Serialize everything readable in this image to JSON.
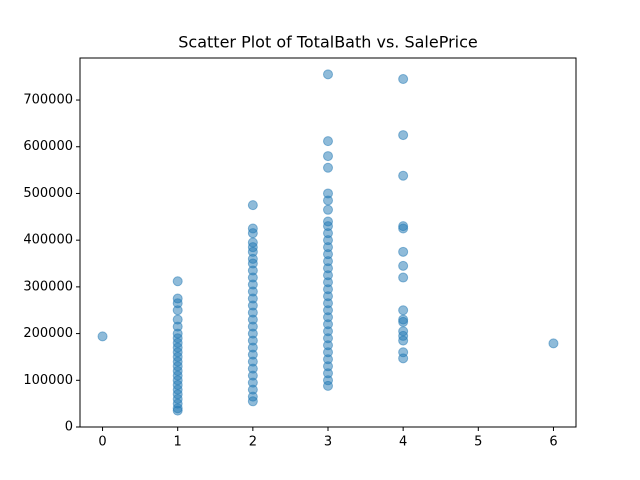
{
  "chart_data": {
    "type": "scatter",
    "title": "Scatter Plot of TotalBath vs. SalePrice",
    "color": "#1f77b4",
    "x": [
      0,
      1,
      1,
      1,
      1,
      1,
      1,
      1,
      1,
      1,
      1,
      1,
      1,
      1,
      1,
      1,
      1,
      1,
      1,
      1,
      1,
      1,
      1,
      1,
      1,
      2,
      2,
      2,
      2,
      2,
      2,
      2,
      2,
      2,
      2,
      2,
      2,
      2,
      2,
      2,
      2,
      2,
      2,
      2,
      2,
      2,
      2,
      2,
      2,
      2,
      2,
      2,
      2,
      3,
      3,
      3,
      3,
      3,
      3,
      3,
      3,
      3,
      3,
      3,
      3,
      3,
      3,
      3,
      3,
      3,
      3,
      3,
      3,
      3,
      3,
      3,
      3,
      3,
      3,
      3,
      3,
      3,
      3,
      3,
      3,
      4,
      4,
      4,
      4,
      4,
      4,
      4,
      4,
      4,
      4,
      4,
      4,
      4,
      4,
      4,
      4,
      6
    ],
    "y": [
      194000,
      35000,
      40000,
      50000,
      60000,
      70000,
      80000,
      90000,
      100000,
      110000,
      120000,
      130000,
      140000,
      150000,
      160000,
      170000,
      180000,
      190000,
      200000,
      215000,
      230000,
      250000,
      265000,
      275000,
      312000,
      55000,
      65000,
      80000,
      95000,
      110000,
      125000,
      140000,
      155000,
      170000,
      185000,
      200000,
      215000,
      230000,
      245000,
      260000,
      275000,
      290000,
      305000,
      320000,
      335000,
      350000,
      360000,
      375000,
      385000,
      395000,
      415000,
      425000,
      475000,
      88000,
      100000,
      115000,
      130000,
      145000,
      160000,
      175000,
      190000,
      205000,
      220000,
      235000,
      250000,
      265000,
      280000,
      295000,
      310000,
      325000,
      340000,
      355000,
      370000,
      385000,
      400000,
      415000,
      430000,
      440000,
      465000,
      485000,
      500000,
      555000,
      580000,
      612000,
      755000,
      147000,
      160000,
      185000,
      195000,
      205000,
      225000,
      230000,
      250000,
      320000,
      345000,
      375000,
      425000,
      430000,
      538000,
      625000,
      745000,
      179000
    ],
    "xlim": [
      -0.3,
      6.3
    ],
    "xticks": [
      0,
      1,
      2,
      3,
      4,
      5,
      6
    ],
    "ylim": [
      0,
      790000
    ],
    "yticks": [
      0,
      100000,
      200000,
      300000,
      400000,
      500000,
      600000,
      700000
    ]
  }
}
